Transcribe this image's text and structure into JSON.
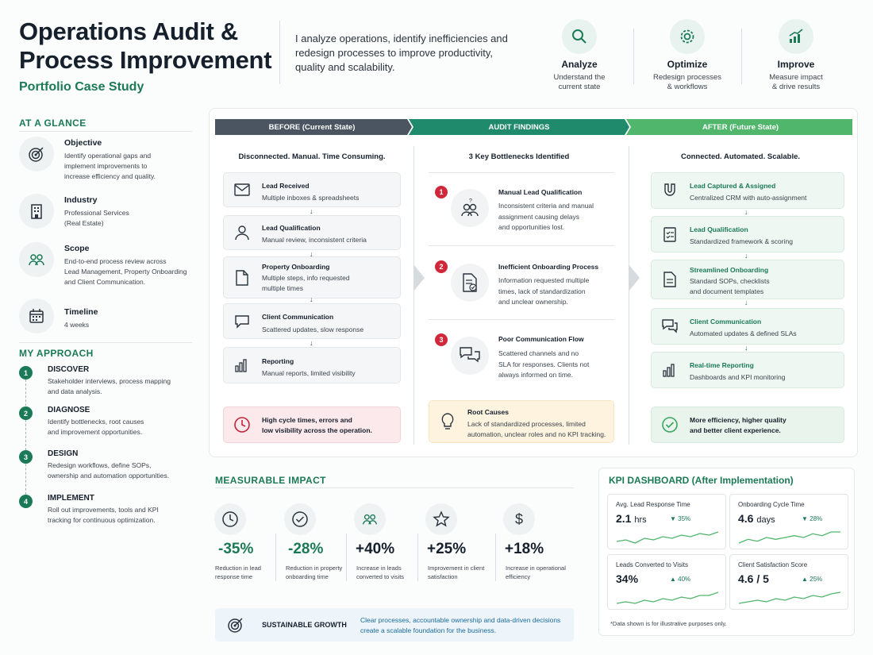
{
  "header": {
    "title": "Operations Audit & Process Improvement",
    "subtitle": "Portfolio Case Study",
    "intro": "I analyze operations, identify inefficiencies and redesign processes to improve productivity, quality and scalability.",
    "pillars": [
      {
        "icon": "search-icon",
        "title": "Analyze",
        "desc": "Understand the\ncurrent state"
      },
      {
        "icon": "gear-icon",
        "title": "Optimize",
        "desc": "Redesign processes\n& workflows"
      },
      {
        "icon": "chart-growth-icon",
        "title": "Improve",
        "desc": "Measure impact\n& drive results"
      }
    ]
  },
  "glance": {
    "heading": "AT A GLANCE",
    "items": [
      {
        "icon": "target-icon",
        "title": "Objective",
        "desc": "Identify operational gaps and\nimplement improvements to\nincrease efficiency and quality."
      },
      {
        "icon": "building-icon",
        "title": "Industry",
        "desc": "Professional Services\n(Real Estate)"
      },
      {
        "icon": "team-icon",
        "title": "Scope",
        "desc": "End-to-end process review across\nLead Management, Property Onboarding\nand Client Communication."
      },
      {
        "icon": "calendar-icon",
        "title": "Timeline",
        "desc": "4 weeks"
      }
    ]
  },
  "approach": {
    "heading": "MY APPROACH",
    "steps": [
      {
        "num": "1",
        "title": "DISCOVER",
        "desc": "Stakeholder interviews, process mapping\nand data analysis."
      },
      {
        "num": "2",
        "title": "DIAGNOSE",
        "desc": "Identify bottlenecks, root causes\nand improvement opportunities."
      },
      {
        "num": "3",
        "title": "DESIGN",
        "desc": "Redesign workflows, define SOPs,\nownership and automation opportunities."
      },
      {
        "num": "4",
        "title": "IMPLEMENT",
        "desc": "Roll out improvements, tools and KPI\ntracking for continuous optimization."
      }
    ]
  },
  "before": {
    "header": "BEFORE (Current State)",
    "subtitle": "Disconnected. Manual. Time Consuming.",
    "cards": [
      {
        "icon": "mail-icon",
        "title": "Lead Received",
        "desc": "Multiple inboxes & spreadsheets"
      },
      {
        "icon": "user-icon",
        "title": "Lead Qualification",
        "desc": "Manual review, inconsistent criteria"
      },
      {
        "icon": "document-icon",
        "title": "Property Onboarding",
        "desc": "Multiple steps, info requested\nmultiple times"
      },
      {
        "icon": "chat-icon",
        "title": "Client Communication",
        "desc": "Scattered updates, slow response"
      },
      {
        "icon": "bar-chart-icon",
        "title": "Reporting",
        "desc": "Manual reports, limited visibility"
      }
    ],
    "summary": "High cycle times, errors and\nlow visibility across the operation."
  },
  "findings": {
    "header": "AUDIT FINDINGS",
    "subtitle": "3 Key Bottlenecks Identified",
    "items": [
      {
        "num": "1",
        "icon": "people-question-icon",
        "title": "Manual Lead Qualification",
        "desc": "Inconsistent criteria and manual\nassignment causing delays\nand opportunities lost."
      },
      {
        "num": "2",
        "icon": "document-check-icon",
        "title": "Inefficient Onboarding Process",
        "desc": "Information requested multiple\ntimes, lack of standardization\nand unclear ownership."
      },
      {
        "num": "3",
        "icon": "chat-bubbles-icon",
        "title": "Poor Communication Flow",
        "desc": "Scattered channels and no\nSLA for responses. Clients not\nalways informed on time."
      }
    ],
    "root_title": "Root Causes",
    "root_desc": "Lack of standardized processes, limited\nautomation, unclear roles and no KPI tracking."
  },
  "after": {
    "header": "AFTER (Future State)",
    "subtitle": "Connected. Automated. Scalable.",
    "cards": [
      {
        "icon": "magnet-icon",
        "title": "Lead Captured & Assigned",
        "desc": "Centralized CRM with auto-assignment"
      },
      {
        "icon": "checklist-icon",
        "title": "Lead Qualification",
        "desc": "Standardized framework & scoring"
      },
      {
        "icon": "document-icon",
        "title": "Streamlined Onboarding",
        "desc": "Standard SOPs, checklists\nand document templates"
      },
      {
        "icon": "chat-icon",
        "title": "Client Communication",
        "desc": "Automated updates & defined SLAs"
      },
      {
        "icon": "bar-chart-icon",
        "title": "Real-time Reporting",
        "desc": "Dashboards and KPI monitoring"
      }
    ],
    "summary": "More efficiency, higher quality\nand better client experience."
  },
  "impact": {
    "heading": "MEASURABLE IMPACT",
    "items": [
      {
        "icon": "clock-icon",
        "value": "-35%",
        "label": "Reduction in lead\nresponse time"
      },
      {
        "icon": "check-circle-icon",
        "value": "-28%",
        "label": "Reduction in property\nonboarding time"
      },
      {
        "icon": "team-icon",
        "value": "+40%",
        "label": "Increase in leads\nconverted to visits"
      },
      {
        "icon": "star-icon",
        "value": "+25%",
        "label": "Improvement in client\nsatisfaction"
      },
      {
        "icon": "dollar-icon",
        "value": "+18%",
        "label": "Increase in operational\nefficiency"
      }
    ],
    "growth_title": "SUSTAINABLE GROWTH",
    "growth_desc": "Clear processes, accountable ownership and data-driven decisions\ncreate a scalable foundation for the business."
  },
  "kpi": {
    "heading": "KPI DASHBOARD (After Implementation)",
    "cards": [
      {
        "label": "Avg. Lead Response Time",
        "value": "2.1",
        "unit": "hrs",
        "change": "▼ 35%",
        "trend": [
          4,
          5,
          3,
          6,
          5,
          7,
          6,
          8,
          7,
          9,
          8,
          10
        ]
      },
      {
        "label": "Onboarding Cycle Time",
        "value": "4.6",
        "unit": "days",
        "change": "▼ 28%",
        "trend": [
          3,
          5,
          4,
          6,
          5,
          6,
          7,
          6,
          8,
          7,
          9,
          9
        ]
      },
      {
        "label": "Leads Converted to Visits",
        "value": "34%",
        "unit": "",
        "change": "▲ 40%",
        "trend": [
          3,
          4,
          3,
          5,
          4,
          6,
          5,
          7,
          6,
          8,
          8,
          10
        ]
      },
      {
        "label": "Client Satisfaction Score",
        "value": "4.6 / 5",
        "unit": "",
        "change": "▲ 25%",
        "trend": [
          2,
          3,
          4,
          3,
          5,
          4,
          6,
          5,
          7,
          6,
          8,
          9
        ]
      }
    ],
    "note": "*Data shown is for illustrative purposes only."
  },
  "colors": {
    "accent": "#1b7a56",
    "dark": "#4a5561",
    "teal": "#1f8a6c",
    "green": "#4fb66c",
    "alert": "#d0283a"
  }
}
